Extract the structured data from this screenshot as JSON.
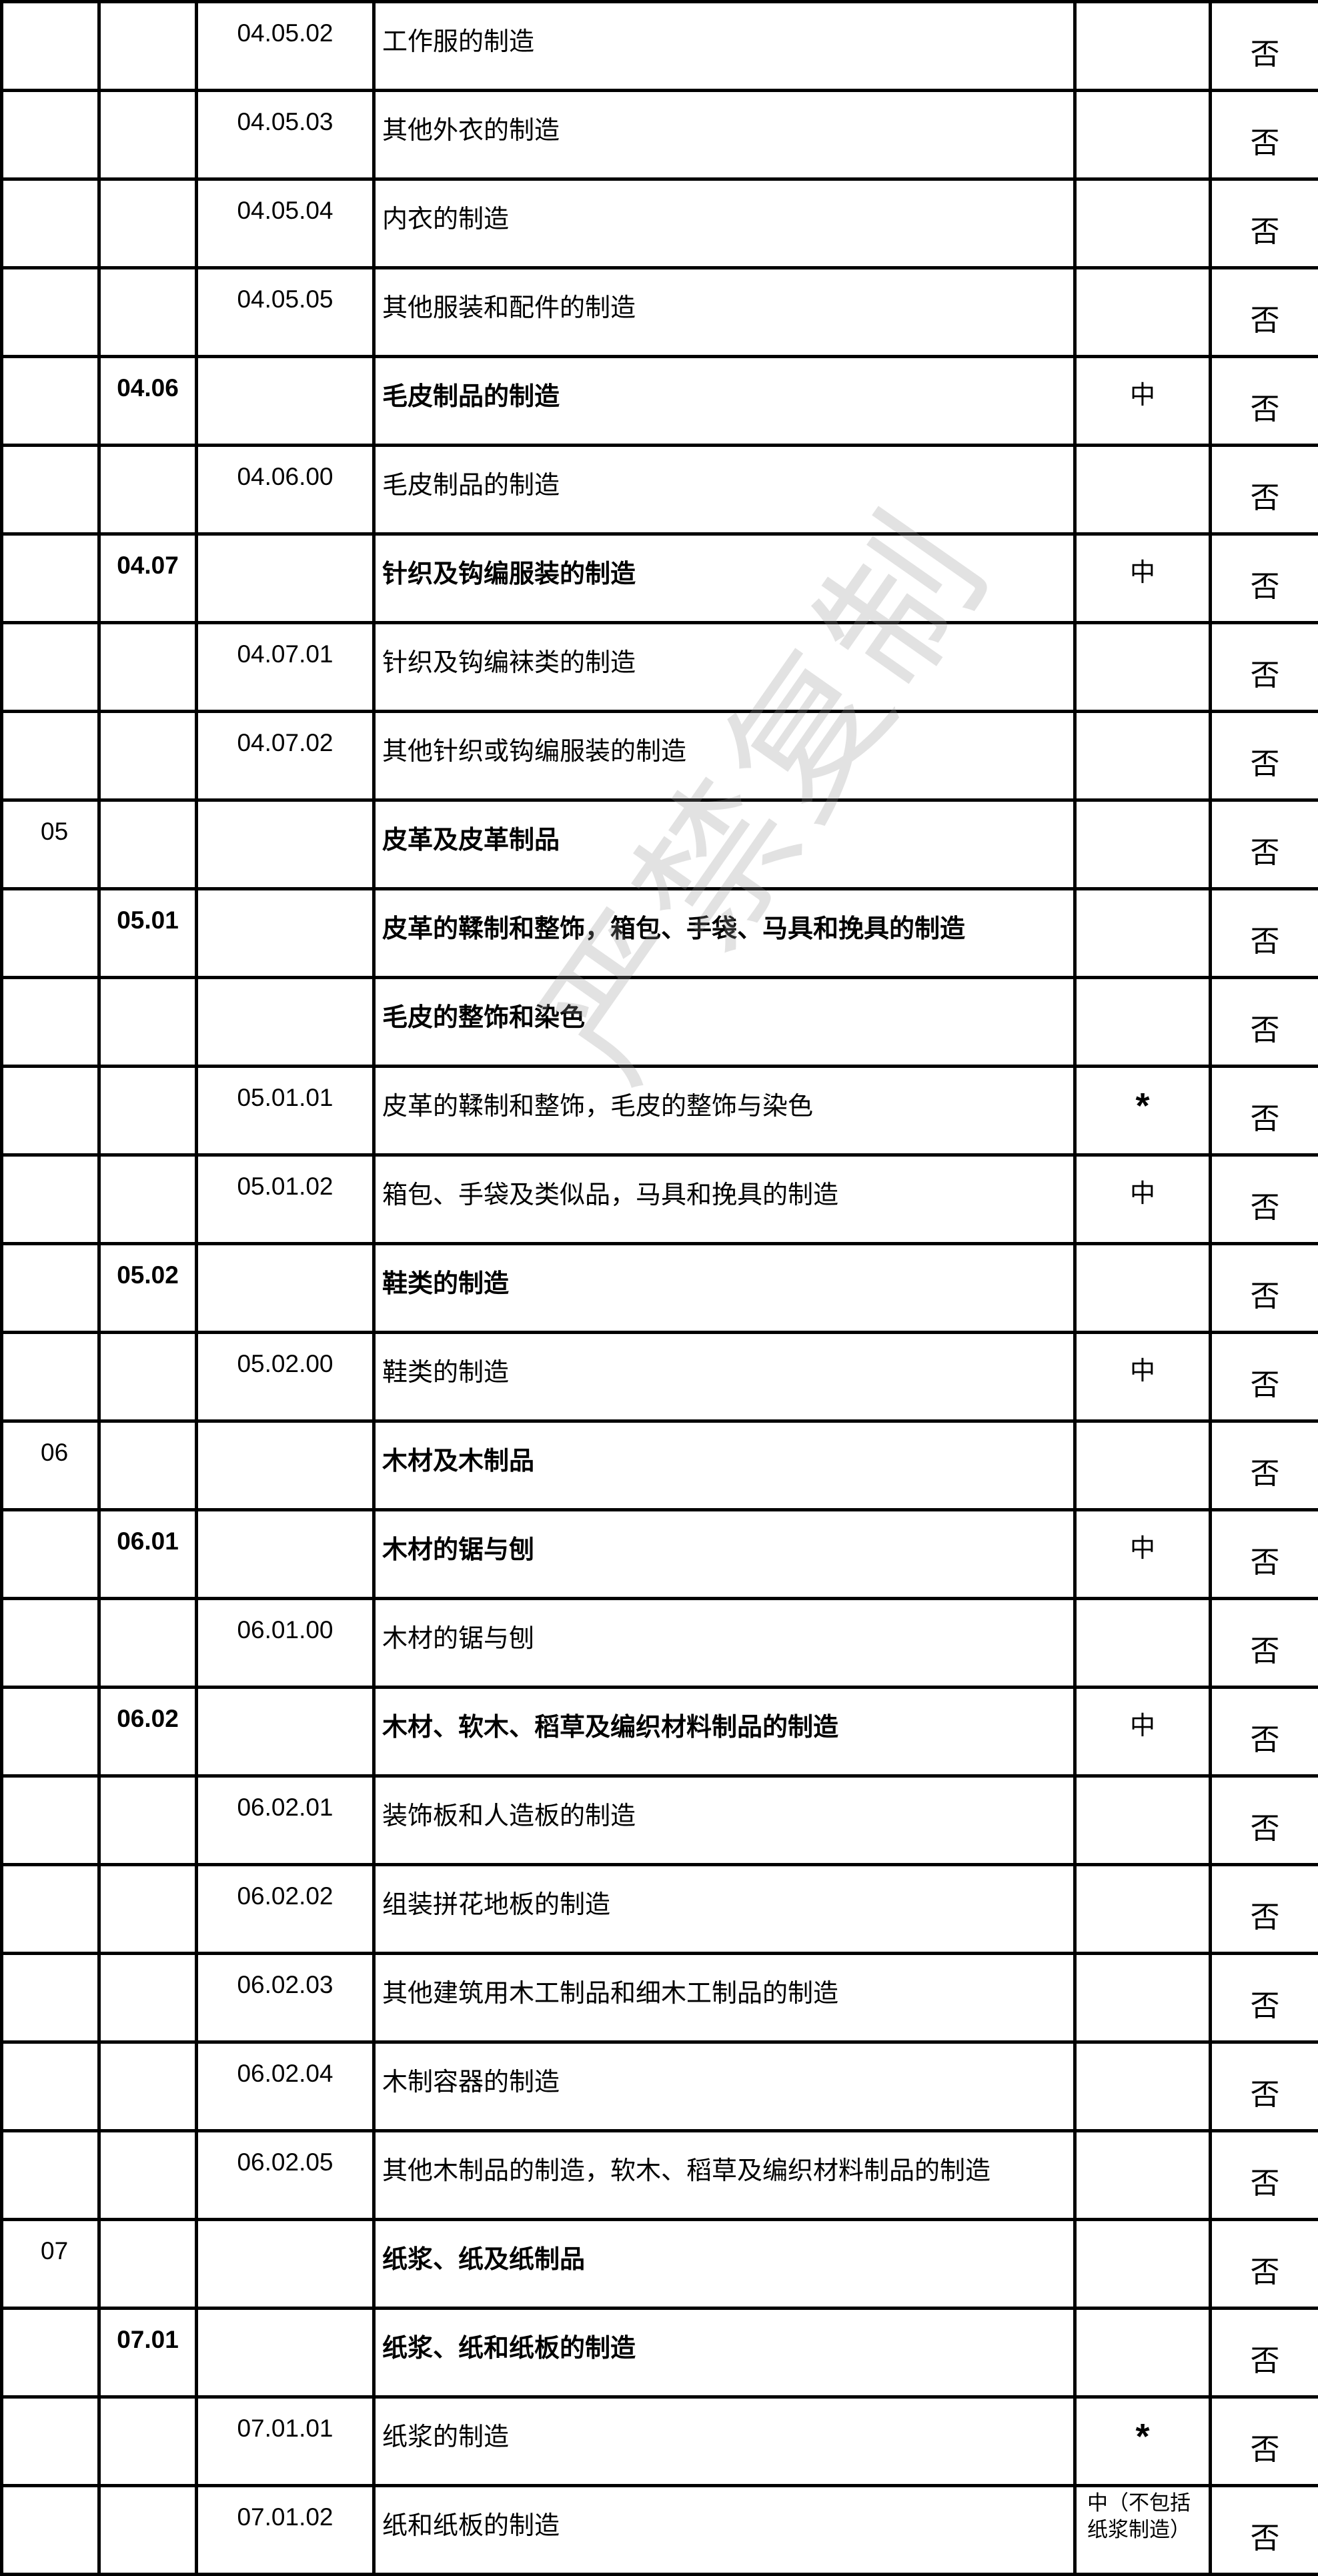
{
  "watermark": "严禁复制",
  "rows": [
    {
      "c1": "",
      "c2": "",
      "c3": "04.05.02",
      "c4": "工作服的制造",
      "c5": "",
      "c6": "否",
      "bold": false
    },
    {
      "c1": "",
      "c2": "",
      "c3": "04.05.03",
      "c4": "其他外衣的制造",
      "c5": "",
      "c6": "否",
      "bold": false
    },
    {
      "c1": "",
      "c2": "",
      "c3": "04.05.04",
      "c4": "内衣的制造",
      "c5": "",
      "c6": "否",
      "bold": false
    },
    {
      "c1": "",
      "c2": "",
      "c3": "04.05.05",
      "c4": "其他服装和配件的制造",
      "c5": "",
      "c6": "否",
      "bold": false
    },
    {
      "c1": "",
      "c2": "04.06",
      "c3": "",
      "c4": "毛皮制品的制造",
      "c5": "中",
      "c6": "否",
      "bold": true
    },
    {
      "c1": "",
      "c2": "",
      "c3": "04.06.00",
      "c4": "毛皮制品的制造",
      "c5": "",
      "c6": "否",
      "bold": false
    },
    {
      "c1": "",
      "c2": "04.07",
      "c3": "",
      "c4": "针织及钩编服装的制造",
      "c5": "中",
      "c6": "否",
      "bold": true
    },
    {
      "c1": "",
      "c2": "",
      "c3": "04.07.01",
      "c4": "针织及钩编袜类的制造",
      "c5": "",
      "c6": "否",
      "bold": false
    },
    {
      "c1": "",
      "c2": "",
      "c3": "04.07.02",
      "c4": "其他针织或钩编服装的制造",
      "c5": "",
      "c6": "否",
      "bold": false
    },
    {
      "c1": "05",
      "c2": "",
      "c3": "",
      "c4": "皮革及皮革制品",
      "c5": "",
      "c6": "否",
      "bold": true
    },
    {
      "c1": "",
      "c2": "05.01",
      "c3": "",
      "c4": "皮革的鞣制和整饰，箱包、手袋、马具和挽具的制造",
      "c5": "",
      "c6": "否",
      "bold": true
    },
    {
      "c1": "",
      "c2": "",
      "c3": "",
      "c4": "毛皮的整饰和染色",
      "c5": "",
      "c6": "否",
      "bold": true
    },
    {
      "c1": "",
      "c2": "",
      "c3": "05.01.01",
      "c4": "皮革的鞣制和整饰，毛皮的整饰与染色",
      "c5": "*",
      "c6": "否",
      "bold": false
    },
    {
      "c1": "",
      "c2": "",
      "c3": "05.01.02",
      "c4": "箱包、手袋及类似品，马具和挽具的制造",
      "c5": "中",
      "c6": "否",
      "bold": false
    },
    {
      "c1": "",
      "c2": "05.02",
      "c3": "",
      "c4": "鞋类的制造",
      "c5": "",
      "c6": "否",
      "bold": true
    },
    {
      "c1": "",
      "c2": "",
      "c3": "05.02.00",
      "c4": "鞋类的制造",
      "c5": "中",
      "c6": "否",
      "bold": false
    },
    {
      "c1": "06",
      "c2": "",
      "c3": "",
      "c4": "木材及木制品",
      "c5": "",
      "c6": "否",
      "bold": true
    },
    {
      "c1": "",
      "c2": "06.01",
      "c3": "",
      "c4": "木材的锯与刨",
      "c5": "中",
      "c6": "否",
      "bold": true
    },
    {
      "c1": "",
      "c2": "",
      "c3": "06.01.00",
      "c4": "木材的锯与刨",
      "c5": "",
      "c6": "否",
      "bold": false
    },
    {
      "c1": "",
      "c2": "06.02",
      "c3": "",
      "c4": "木材、软木、稻草及编织材料制品的制造",
      "c5": "中",
      "c6": "否",
      "bold": true
    },
    {
      "c1": "",
      "c2": "",
      "c3": "06.02.01",
      "c4": "装饰板和人造板的制造",
      "c5": "",
      "c6": "否",
      "bold": false
    },
    {
      "c1": "",
      "c2": "",
      "c3": "06.02.02",
      "c4": "组装拼花地板的制造",
      "c5": "",
      "c6": "否",
      "bold": false
    },
    {
      "c1": "",
      "c2": "",
      "c3": "06.02.03",
      "c4": "其他建筑用木工制品和细木工制品的制造",
      "c5": "",
      "c6": "否",
      "bold": false
    },
    {
      "c1": "",
      "c2": "",
      "c3": "06.02.04",
      "c4": "木制容器的制造",
      "c5": "",
      "c6": "否",
      "bold": false
    },
    {
      "c1": "",
      "c2": "",
      "c3": "06.02.05",
      "c4": "其他木制品的制造，软木、稻草及编织材料制品的制造",
      "c5": "",
      "c6": "否",
      "bold": false
    },
    {
      "c1": "07",
      "c2": "",
      "c3": "",
      "c4": "纸浆、纸及纸制品",
      "c5": "",
      "c6": "否",
      "bold": true
    },
    {
      "c1": "",
      "c2": "07.01",
      "c3": "",
      "c4": "纸浆、纸和纸板的制造",
      "c5": "",
      "c6": "否",
      "bold": true
    },
    {
      "c1": "",
      "c2": "",
      "c3": "07.01.01",
      "c4": "纸浆的制造",
      "c5": "*",
      "c6": "否",
      "bold": false
    },
    {
      "c1": "",
      "c2": "",
      "c3": "07.01.02",
      "c4": "纸和纸板的制造",
      "c5": "中（不包括纸浆制造）",
      "c6": "否",
      "bold": false
    }
  ]
}
